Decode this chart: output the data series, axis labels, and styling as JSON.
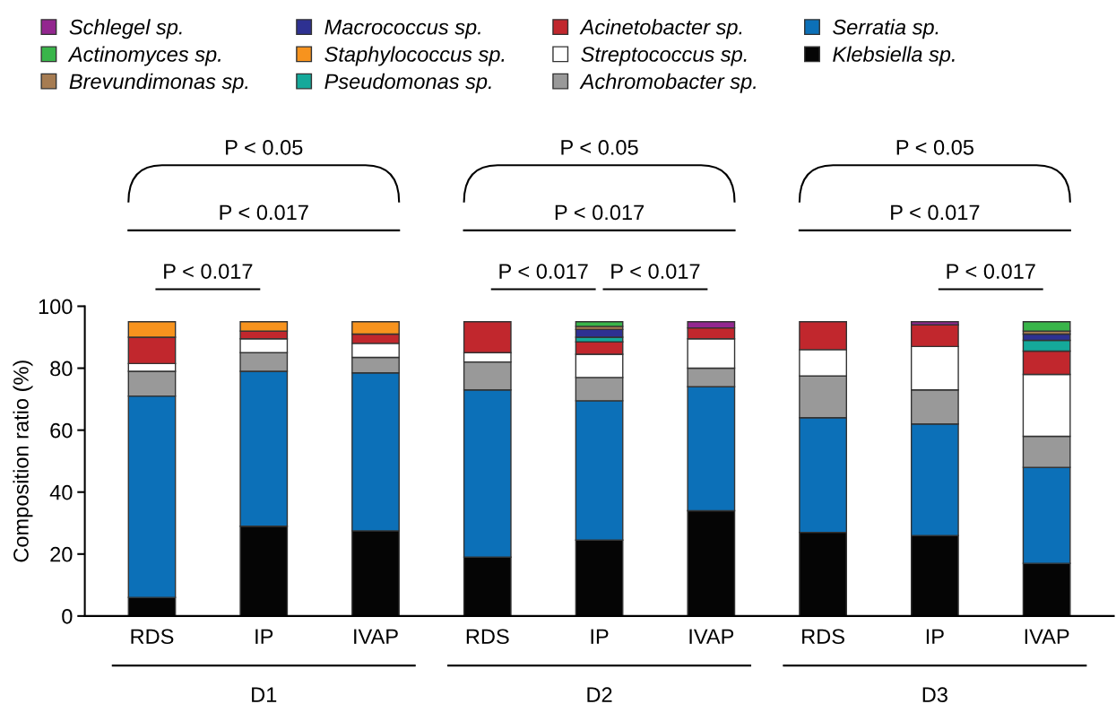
{
  "chart_data": {
    "type": "bar",
    "stacked": true,
    "ylabel": "Composition ratio (%)",
    "categories": [
      "RDS",
      "IP",
      "IVAP",
      "RDS",
      "IP",
      "IVAP",
      "RDS",
      "IP",
      "IVAP"
    ],
    "ylim": [
      0,
      100
    ],
    "yticks": [
      0,
      20,
      40,
      60,
      80,
      100
    ],
    "grid": false,
    "legend": "top",
    "series": [
      {
        "name": "Klebsiella sp.",
        "color": "#050505",
        "values": [
          6,
          29,
          27.5,
          19,
          24.5,
          34,
          27,
          26,
          17
        ]
      },
      {
        "name": "Serratia sp.",
        "color": "#0c70b8",
        "values": [
          65,
          50,
          51,
          54,
          45,
          40,
          37,
          36,
          31
        ]
      },
      {
        "name": "Achromobacter sp.",
        "color": "#999999",
        "values": [
          8,
          6,
          5,
          9,
          7.5,
          6,
          13.5,
          11,
          10
        ]
      },
      {
        "name": "Streptococcus sp.",
        "color": "#ffffff",
        "values": [
          2.5,
          4.5,
          4.5,
          3,
          7.5,
          9.5,
          8.5,
          14,
          20
        ]
      },
      {
        "name": "Acinetobacter sp.",
        "color": "#c1272d",
        "values": [
          8.5,
          2.5,
          3,
          10,
          4,
          3.5,
          9,
          7,
          7.5
        ]
      },
      {
        "name": "Pseudomonas sp.",
        "color": "#15a99a",
        "values": [
          null,
          null,
          null,
          null,
          1.5,
          null,
          null,
          null,
          3.5
        ]
      },
      {
        "name": "Macrococcus sp.",
        "color": "#2e3192",
        "values": [
          null,
          null,
          null,
          null,
          2.5,
          null,
          null,
          null,
          2
        ]
      },
      {
        "name": "Brevundimonas sp.",
        "color": "#a67c52",
        "values": [
          null,
          null,
          null,
          null,
          1,
          null,
          null,
          null,
          1
        ]
      },
      {
        "name": "Actinomyces sp.",
        "color": "#39b54a",
        "values": [
          null,
          null,
          null,
          null,
          1.5,
          null,
          null,
          null,
          3
        ]
      },
      {
        "name": "Staphylococcus sp.",
        "color": "#f7931e",
        "values": [
          5,
          3,
          4,
          null,
          null,
          null,
          null,
          null,
          null
        ]
      },
      {
        "name": "Schlegel sp.",
        "color": "#93278f",
        "values": [
          null,
          null,
          null,
          null,
          null,
          2,
          null,
          1,
          null
        ]
      }
    ],
    "annotations": [
      "P < 0.017",
      "P < 0.017",
      "P < 0.05",
      "P < 0.017",
      "P < 0.017",
      "P < 0.017",
      "P < 0.05",
      "P < 0.017",
      "P < 0.017",
      "P < 0.05",
      "D1",
      "D2",
      "D3"
    ]
  }
}
